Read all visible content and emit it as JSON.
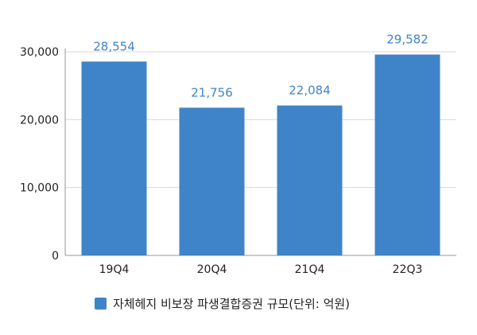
{
  "chart_data": {
    "type": "bar",
    "categories": [
      "19Q4",
      "20Q4",
      "21Q4",
      "22Q3"
    ],
    "series": [
      {
        "name": "자체헤지 비보장 파생결합증권 규모(단위: 억원)",
        "values": [
          28554,
          21756,
          22084,
          29582
        ],
        "value_labels": [
          "28,554",
          "21,756",
          "22,084",
          "29,582"
        ]
      }
    ],
    "ylim": [
      0,
      30000
    ],
    "yticks": [
      0,
      10000,
      20000,
      30000
    ],
    "ytick_labels": [
      "0",
      "10,000",
      "20,000",
      "30,000"
    ],
    "grid": true,
    "legend_position": "bottom",
    "colors": {
      "bar": "#3f84c8",
      "data_label": "#3f84c8",
      "grid": "#d9d9d9",
      "axis": "#9a9a9a"
    }
  }
}
